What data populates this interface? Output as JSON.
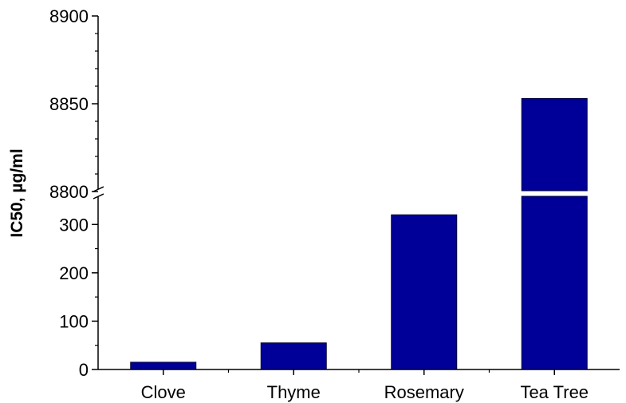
{
  "chart_data": {
    "type": "bar",
    "categories": [
      "Clove",
      "Thyme",
      "Rosemary",
      "Tea Tree"
    ],
    "values": [
      15,
      55,
      320,
      8853
    ],
    "title": "",
    "xlabel": "",
    "ylabel": "IC50, µg/ml",
    "y_axis_break": {
      "lower_range": [
        0,
        350
      ],
      "upper_range": [
        8800,
        8900
      ],
      "lower_ticks": [
        0,
        100,
        200,
        300
      ],
      "lower_tick_labels": [
        "0",
        "100",
        "200",
        "300"
      ],
      "upper_ticks": [
        8800,
        8850,
        8900
      ],
      "upper_tick_labels": [
        "8800",
        "8850",
        "8900"
      ]
    },
    "grid": false,
    "bar_color": "#000099"
  }
}
